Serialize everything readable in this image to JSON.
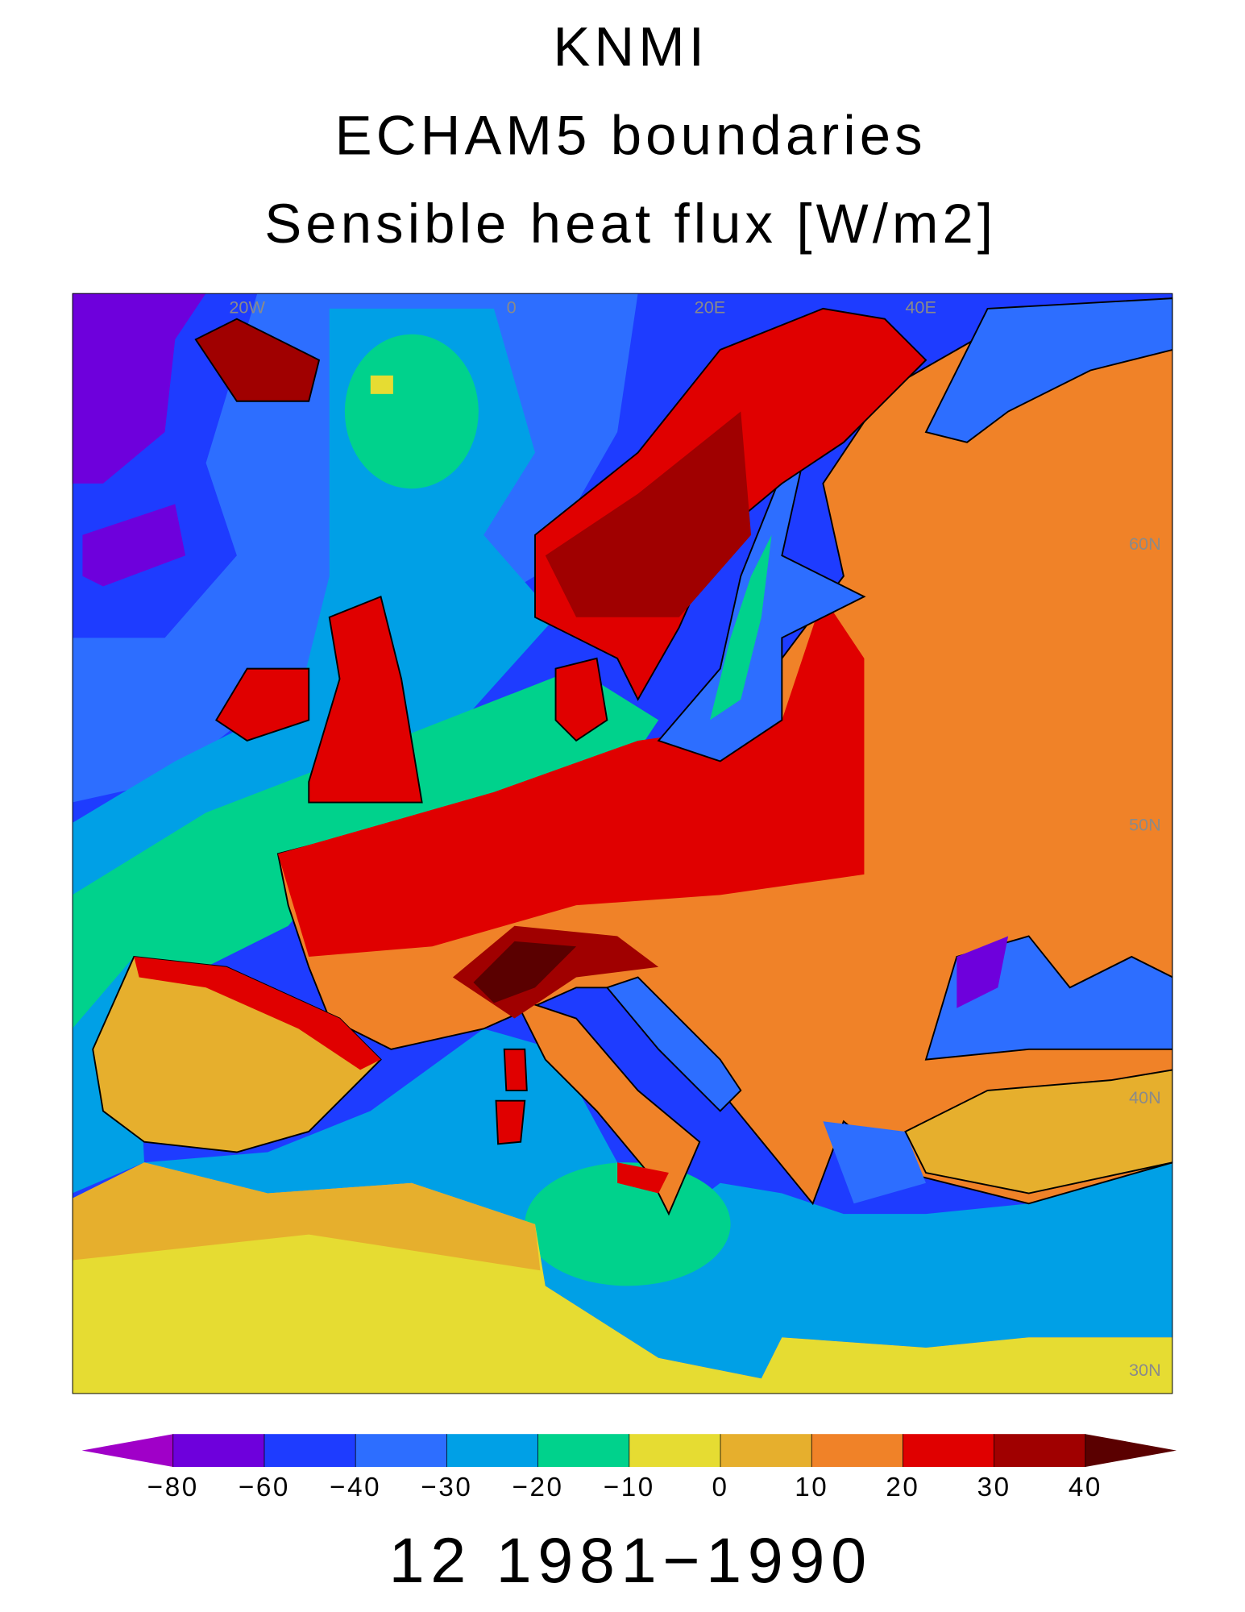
{
  "title_lines": [
    "KNMI",
    "ECHAM5 boundaries",
    "Sensible heat flux [W/m2]"
  ],
  "map": {
    "lon_labels": [
      "20W",
      "0",
      "20E",
      "40E"
    ],
    "lat_labels": [
      "60N",
      "50N",
      "40N",
      "30N"
    ]
  },
  "chart_data": {
    "type": "colorbar",
    "ticks": [
      {
        "value": -80,
        "label": "−80"
      },
      {
        "value": -60,
        "label": "−60"
      },
      {
        "value": -40,
        "label": "−40"
      },
      {
        "value": -30,
        "label": "−30"
      },
      {
        "value": -20,
        "label": "−20"
      },
      {
        "value": -10,
        "label": "−10"
      },
      0,
      10,
      20,
      30,
      40
    ],
    "colors": [
      "#a000c8",
      "#6e00dc",
      "#1e3cff",
      "#2d6eff",
      "#00a0e6",
      "#00d28c",
      "#e6dc32",
      "#e6af2d",
      "#f08228",
      "#e00000",
      "#a00000",
      "#5a0000"
    ],
    "extend": "both"
  },
  "footer": "12 1981−1990"
}
